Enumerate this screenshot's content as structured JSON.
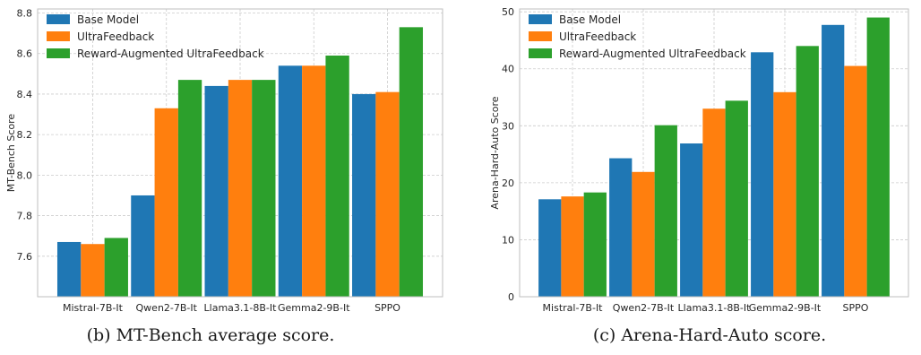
{
  "colors": {
    "base": "#1f77b4",
    "ultra": "#ff7f0e",
    "reward": "#2ca02c",
    "grid": "#cccccc",
    "axes": "#bfbfbf"
  },
  "chart_data": [
    {
      "type": "bar",
      "caption": "(b) MT-Bench average score.",
      "ylabel": "MT-Bench Score",
      "xlabel": "",
      "categories": [
        "Mistral-7B-It",
        "Qwen2-7B-It",
        "Llama3.1-8B-It",
        "Gemma2-9B-It",
        "SPPO"
      ],
      "series": [
        {
          "name": "Base Model",
          "color": "#1f77b4",
          "values": [
            7.67,
            7.9,
            8.44,
            8.54,
            8.4
          ]
        },
        {
          "name": "UltraFeedback",
          "color": "#ff7f0e",
          "values": [
            7.66,
            8.33,
            8.47,
            8.54,
            8.41
          ]
        },
        {
          "name": "Reward-Augmented UltraFeedback",
          "color": "#2ca02c",
          "values": [
            7.69,
            8.47,
            8.47,
            8.59,
            8.73
          ]
        }
      ],
      "ylim": [
        7.4,
        8.82
      ],
      "yticks": [
        7.6,
        7.8,
        8.0,
        8.2,
        8.4,
        8.6,
        8.8
      ],
      "ytick_labels": [
        "7.6",
        "7.8",
        "8.0",
        "8.2",
        "8.4",
        "8.6",
        "8.8"
      ],
      "grid": true,
      "legend": "top-left"
    },
    {
      "type": "bar",
      "caption": "(c) Arena-Hard-Auto score.",
      "ylabel": "Arena-Hard-Auto Score",
      "xlabel": "",
      "categories": [
        "Mistral-7B-It",
        "Qwen2-7B-It",
        "Llama3.1-8B-It",
        "Gemma2-9B-It",
        "SPPO"
      ],
      "series": [
        {
          "name": "Base Model",
          "color": "#1f77b4",
          "values": [
            17.1,
            24.3,
            26.9,
            42.9,
            47.7
          ]
        },
        {
          "name": "UltraFeedback",
          "color": "#ff7f0e",
          "values": [
            17.6,
            21.9,
            33.0,
            35.9,
            40.5
          ]
        },
        {
          "name": "Reward-Augmented UltraFeedback",
          "color": "#2ca02c",
          "values": [
            18.3,
            30.1,
            34.4,
            44.0,
            49.0
          ]
        }
      ],
      "ylim": [
        0,
        50.5
      ],
      "yticks": [
        0,
        10,
        20,
        30,
        40,
        50
      ],
      "ytick_labels": [
        "0",
        "10",
        "20",
        "30",
        "40",
        "50"
      ],
      "grid": true,
      "legend": "top-left"
    }
  ]
}
